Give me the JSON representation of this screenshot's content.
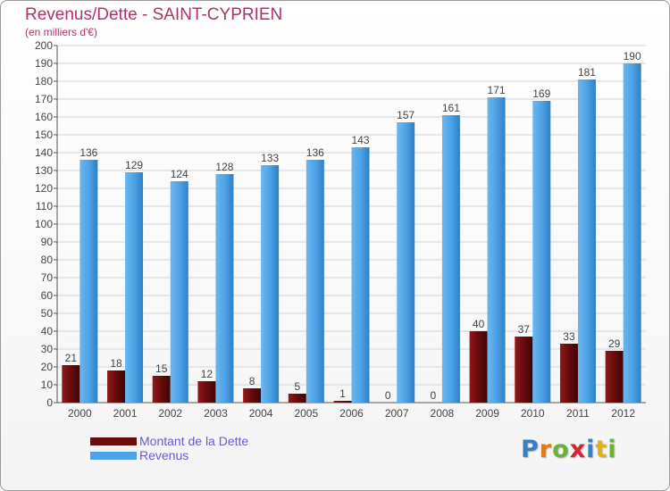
{
  "title": "Revenus/Dette - SAINT-CYPRIEN",
  "subtitle": "(en milliers d'€)",
  "colors": {
    "debt": "#6b0d0d",
    "revenue": "#4ea3e6",
    "title": "#b0306a",
    "legend_text": "#6a5acd"
  },
  "chart_data": {
    "type": "bar",
    "title": "Revenus/Dette - SAINT-CYPRIEN",
    "ylabel": "(en milliers d'€)",
    "xlabel": "",
    "ylim": [
      0,
      200
    ],
    "yticks": [
      0,
      10,
      20,
      30,
      40,
      50,
      60,
      70,
      80,
      90,
      100,
      110,
      120,
      130,
      140,
      150,
      160,
      170,
      180,
      190,
      200
    ],
    "grid": true,
    "legend_position": "bottom-left",
    "categories": [
      "2000",
      "2001",
      "2002",
      "2003",
      "2004",
      "2005",
      "2006",
      "2007",
      "2008",
      "2009",
      "2010",
      "2011",
      "2012"
    ],
    "series": [
      {
        "name": "Montant de la Dette",
        "color": "#6b0d0d",
        "values": [
          21,
          18,
          15,
          12,
          8,
          5,
          1,
          0,
          0,
          40,
          37,
          33,
          29
        ]
      },
      {
        "name": "Revenus",
        "color": "#4ea3e6",
        "values": [
          136,
          129,
          124,
          128,
          133,
          136,
          143,
          157,
          161,
          171,
          169,
          181,
          190
        ]
      }
    ]
  },
  "legend": [
    {
      "label": "Montant de la Dette",
      "color": "#6b0d0d"
    },
    {
      "label": "Revenus",
      "color": "#4ea3e6"
    }
  ],
  "logo": {
    "letters": [
      "P",
      "r",
      "o",
      "x",
      "i",
      "t",
      "i"
    ],
    "colors": [
      "#3a7fc4",
      "#e07a1a",
      "#6cb23a",
      "#d4262e",
      "#3a7fc4",
      "#e0b21a",
      "#6cb23a"
    ]
  }
}
